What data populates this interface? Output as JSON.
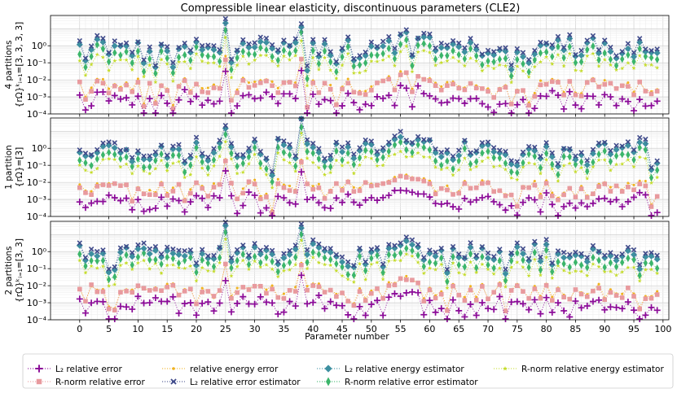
{
  "chart_data": {
    "type": "scatter",
    "title": "Compressible linear elasticity, discontinuous parameters (CLE2)",
    "xlabel": "Parameter number",
    "x_ticks": [
      "0",
      "5",
      "10",
      "15",
      "20",
      "25",
      "30",
      "35",
      "40",
      "45",
      "50",
      "55",
      "60",
      "65",
      "70",
      "75",
      "80",
      "85",
      "90",
      "95",
      "100"
    ],
    "xlim": [
      -5,
      101
    ],
    "y_scale": "log",
    "ylim": [
      0.0001,
      60
    ],
    "y_ticks": [
      "10⁻⁴",
      "10⁻³",
      "10⁻²",
      "10⁻¹",
      "10⁰"
    ],
    "grid": true,
    "legend_placement": "bottom",
    "panels": [
      {
        "ylabel_line1": "4 partitions",
        "ylabel_line2": "{rΩ}ᵏᵢ₌₁=[3, 3, 3, 3]",
        "seed": 11
      },
      {
        "ylabel_line1": "1 partition",
        "ylabel_line2": "{rΩ}=[3]",
        "seed": 23
      },
      {
        "ylabel_line1": "2 partitions",
        "ylabel_line2": "{rΩ}ᵏᵢ₌₁=[3, 3]",
        "seed": 37
      }
    ],
    "series": [
      {
        "name": "L₂ relative error",
        "color": "#8B0A98",
        "marker": "plus"
      },
      {
        "name": "R-norm relative error",
        "color": "#E89A9E",
        "marker": "square"
      },
      {
        "name": "relative energy error",
        "color": "#F0B21E",
        "marker": "dot"
      },
      {
        "name": "L₂ relative error estimator",
        "color": "#3F4A8A",
        "marker": "x"
      },
      {
        "name": "L₂ relative energy estimator",
        "color": "#3D8FA0",
        "marker": "diamond"
      },
      {
        "name": "R-norm relative error estimator",
        "color": "#3BB56A",
        "marker": "thin-diamond"
      },
      {
        "name": "R-norm relative energy estimator",
        "color": "#C5DC2C",
        "marker": "star"
      }
    ],
    "x": [
      0,
      1,
      2,
      3,
      4,
      5,
      6,
      7,
      8,
      9,
      10,
      11,
      12,
      13,
      14,
      15,
      16,
      17,
      18,
      19,
      20,
      21,
      22,
      23,
      24,
      25,
      26,
      27,
      28,
      29,
      30,
      31,
      32,
      33,
      34,
      35,
      36,
      37,
      38,
      39,
      40,
      41,
      42,
      43,
      44,
      45,
      46,
      47,
      48,
      49,
      50,
      51,
      52,
      53,
      54,
      55,
      56,
      57,
      58,
      59,
      60,
      61,
      62,
      63,
      64,
      65,
      66,
      67,
      68,
      69,
      70,
      71,
      72,
      73,
      74,
      75,
      76,
      77,
      78,
      79,
      80,
      81,
      82,
      83,
      84,
      85,
      86,
      87,
      88,
      89,
      90,
      91,
      92,
      93,
      94,
      95,
      96,
      97,
      98,
      99
    ]
  }
}
